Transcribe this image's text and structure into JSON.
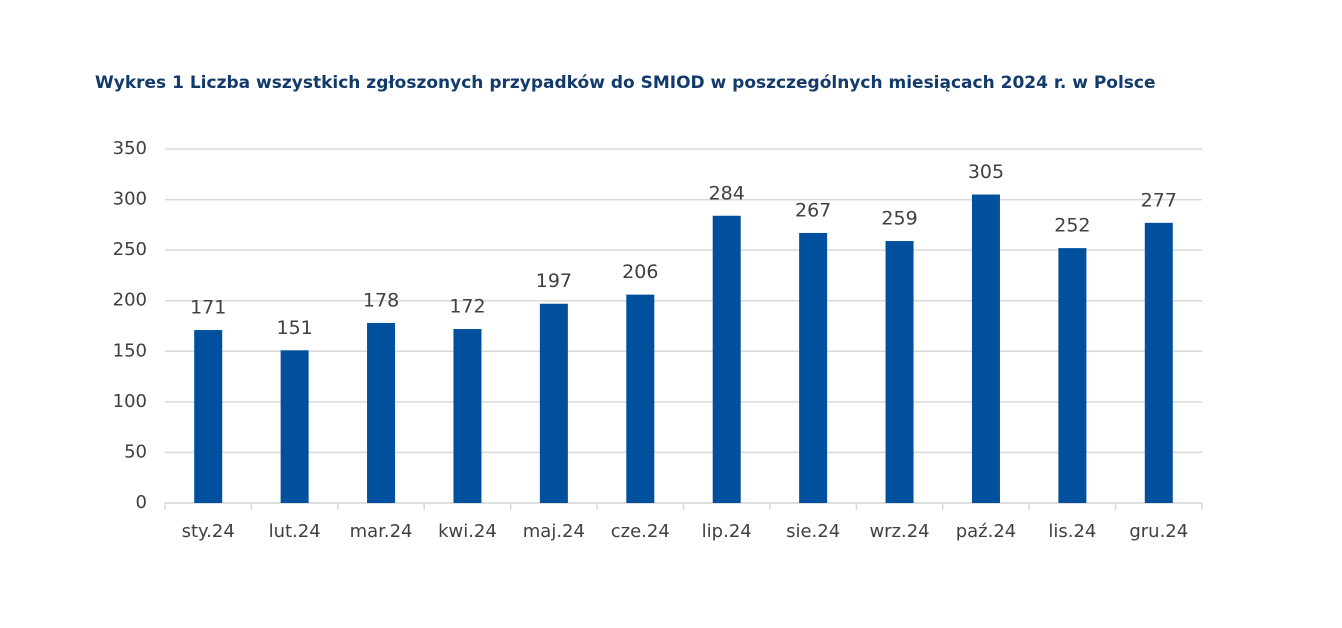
{
  "chart_data": {
    "type": "bar",
    "title": "Wykres 1 Liczba wszystkich zgłoszonych przypadków do SMIOD w poszczególnych miesiącach 2024 r. w Polsce",
    "categories": [
      "sty.24",
      "lut.24",
      "mar.24",
      "kwi.24",
      "maj.24",
      "cze.24",
      "lip.24",
      "sie.24",
      "wrz.24",
      "paź.24",
      "lis.24",
      "gru.24"
    ],
    "values": [
      171,
      151,
      178,
      172,
      197,
      206,
      284,
      267,
      259,
      305,
      252,
      277
    ],
    "color": "#00509e",
    "ylim": [
      0,
      350
    ],
    "yticks": [
      0,
      50,
      100,
      150,
      200,
      250,
      300,
      350
    ],
    "grid": true
  }
}
